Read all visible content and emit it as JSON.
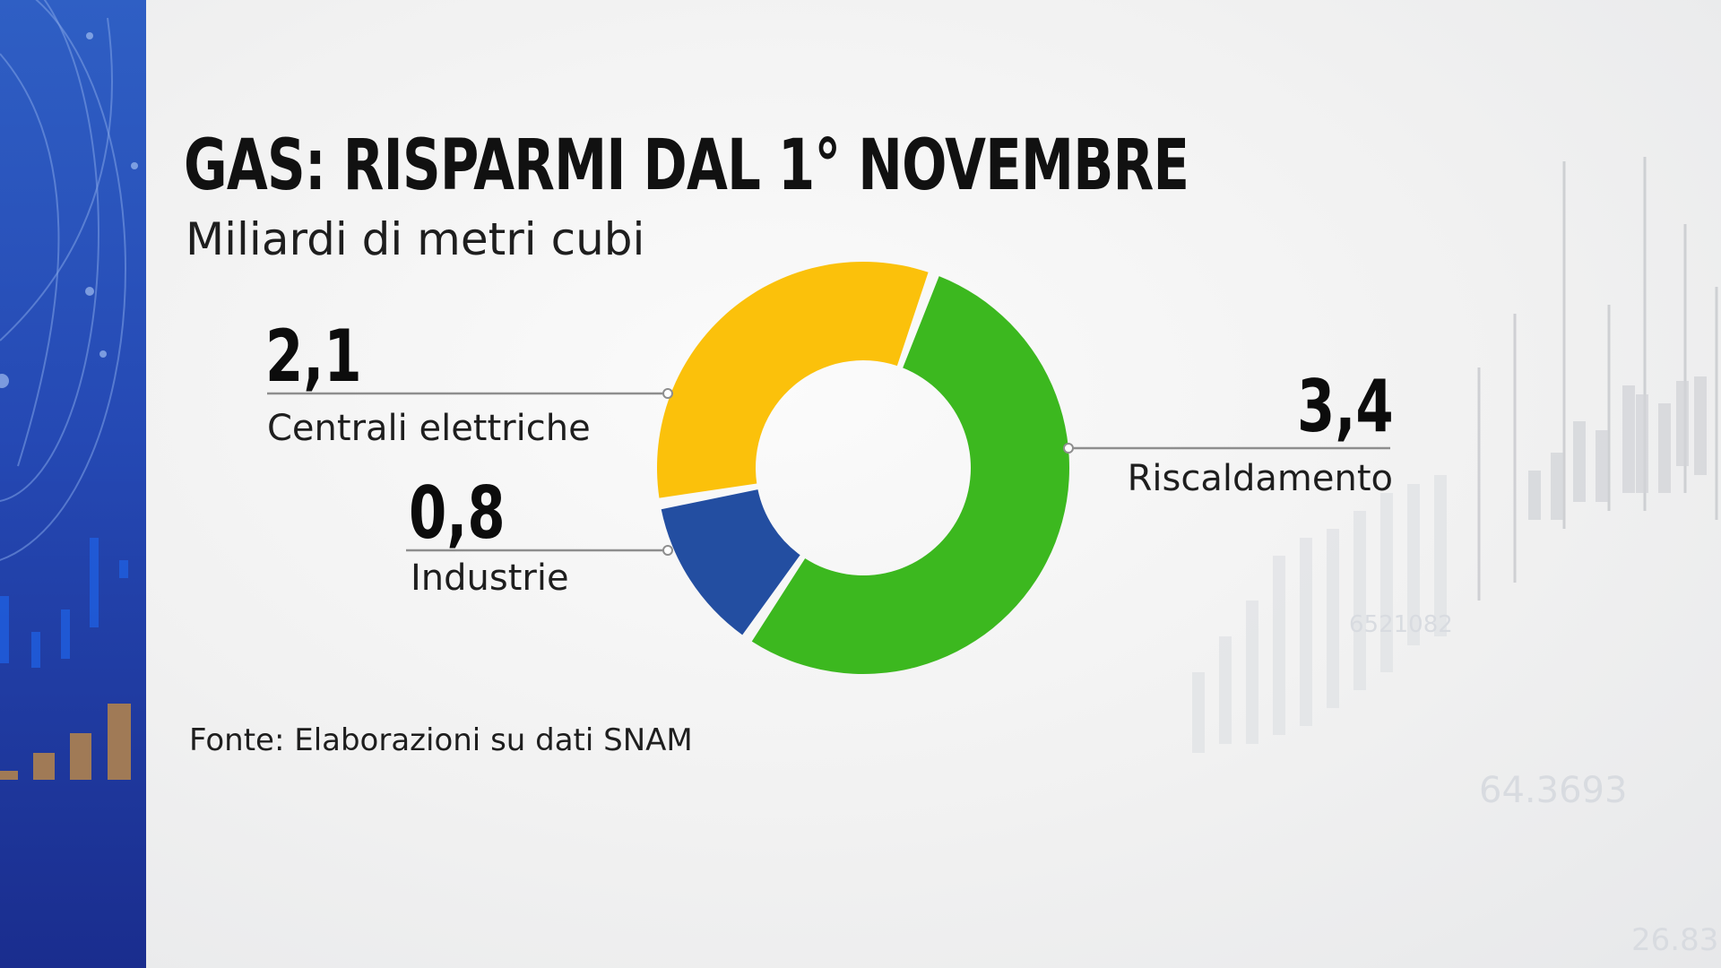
{
  "title": "GAS: RISPARMI DAL 1° NOVEMBRE",
  "subtitle": "Miliardi di metri cubi",
  "source": "Fonte: Elaborazioni su dati SNAM",
  "background_numbers": [
    "6521082",
    "64.3693",
    "26.83"
  ],
  "colors": {
    "riscaldamento": "#3cb81f",
    "industrie": "#234ea1",
    "centrali": "#fbc10b",
    "sidebar": "#2549b4"
  },
  "chart_data": {
    "type": "pie",
    "donut": true,
    "title": "GAS: RISPARMI DAL 1° NOVEMBRE",
    "subtitle": "Miliardi di metri cubi",
    "slices": [
      {
        "label": "Riscaldamento",
        "value": 3.4,
        "value_text": "3,4",
        "color": "#3cb81f"
      },
      {
        "label": "Industrie",
        "value": 0.8,
        "value_text": "0,8",
        "color": "#234ea1"
      },
      {
        "label": "Centrali elettriche",
        "value": 2.1,
        "value_text": "2,1",
        "color": "#fbc10b"
      }
    ]
  }
}
